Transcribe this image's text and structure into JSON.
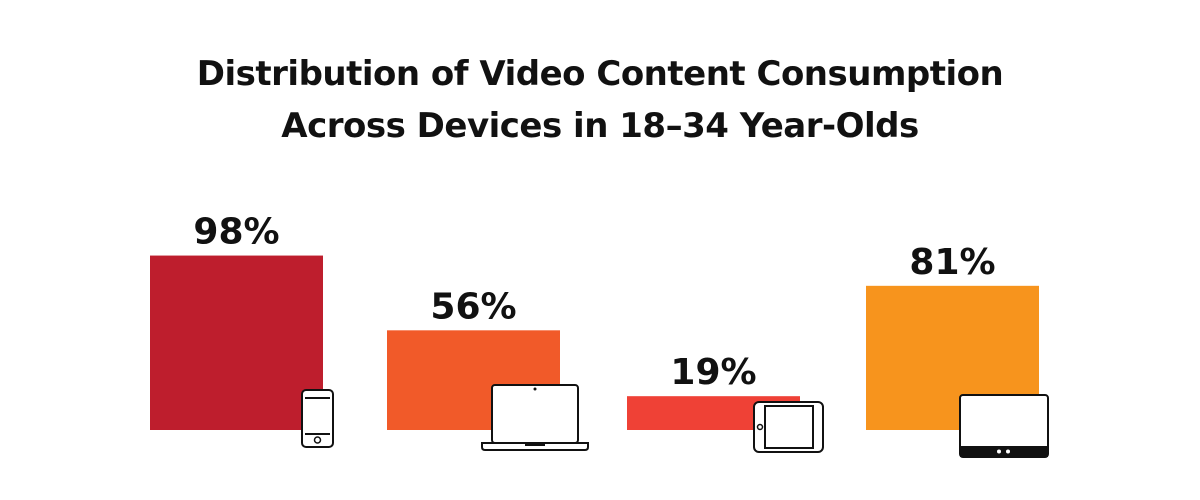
{
  "chart_data": {
    "type": "bar",
    "title": "Distribution of Video Content Consumption Across Devices in 18–34 Year-Olds",
    "values": [
      98,
      56,
      19,
      81
    ],
    "value_labels": [
      "98%",
      "56%",
      "19%",
      "81%"
    ],
    "colors": [
      "#be1e2d",
      "#f15a29",
      "#ef4136",
      "#f7941d"
    ]
  }
}
